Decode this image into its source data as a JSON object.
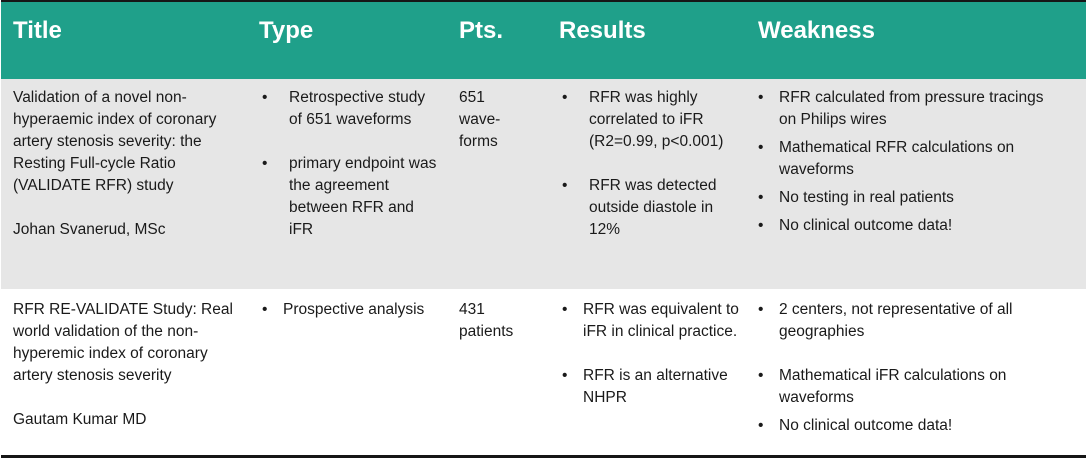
{
  "headers": {
    "title": "Title",
    "type": "Type",
    "pts": "Pts.",
    "results": "Results",
    "weakness": "Weakness"
  },
  "rows": [
    {
      "title_lines": [
        "Validation of a novel non-",
        "hyperaemic index of coronary",
        "artery stenosis severity: the",
        "Resting Full-cycle Ratio",
        "(VALIDATE RFR) study"
      ],
      "author": "Johan Svanerud, MSc",
      "type": [
        "Retrospective study of 651 waveforms",
        "primary endpoint was the agreement between RFR and iFR"
      ],
      "pts_lines": [
        "651",
        "wave-",
        "forms"
      ],
      "results": [
        "RFR was highly correlated to iFR (R2=0.99, p<0.001)",
        "RFR was detected outside diastole in 12%"
      ],
      "weakness": [
        "RFR calculated from pressure tracings on Philips wires",
        "Mathematical RFR calculations on waveforms",
        "No testing in real patients",
        "No clinical outcome data!"
      ]
    },
    {
      "title_lines": [
        "RFR RE-VALIDATE Study: Real",
        "world validation of the non-",
        "hyperemic index of coronary",
        "artery stenosis severity"
      ],
      "author": "Gautam Kumar MD",
      "type": [
        "Prospective analysis"
      ],
      "pts_lines": [
        "431",
        "patients"
      ],
      "results": [
        "RFR was equivalent to iFR in clinical practice.",
        "RFR is an alternative NHPR"
      ],
      "weakness": [
        "2 centers, not representative of all geographies",
        "Mathematical iFR calculations on waveforms",
        "No clinical outcome data!"
      ]
    }
  ]
}
